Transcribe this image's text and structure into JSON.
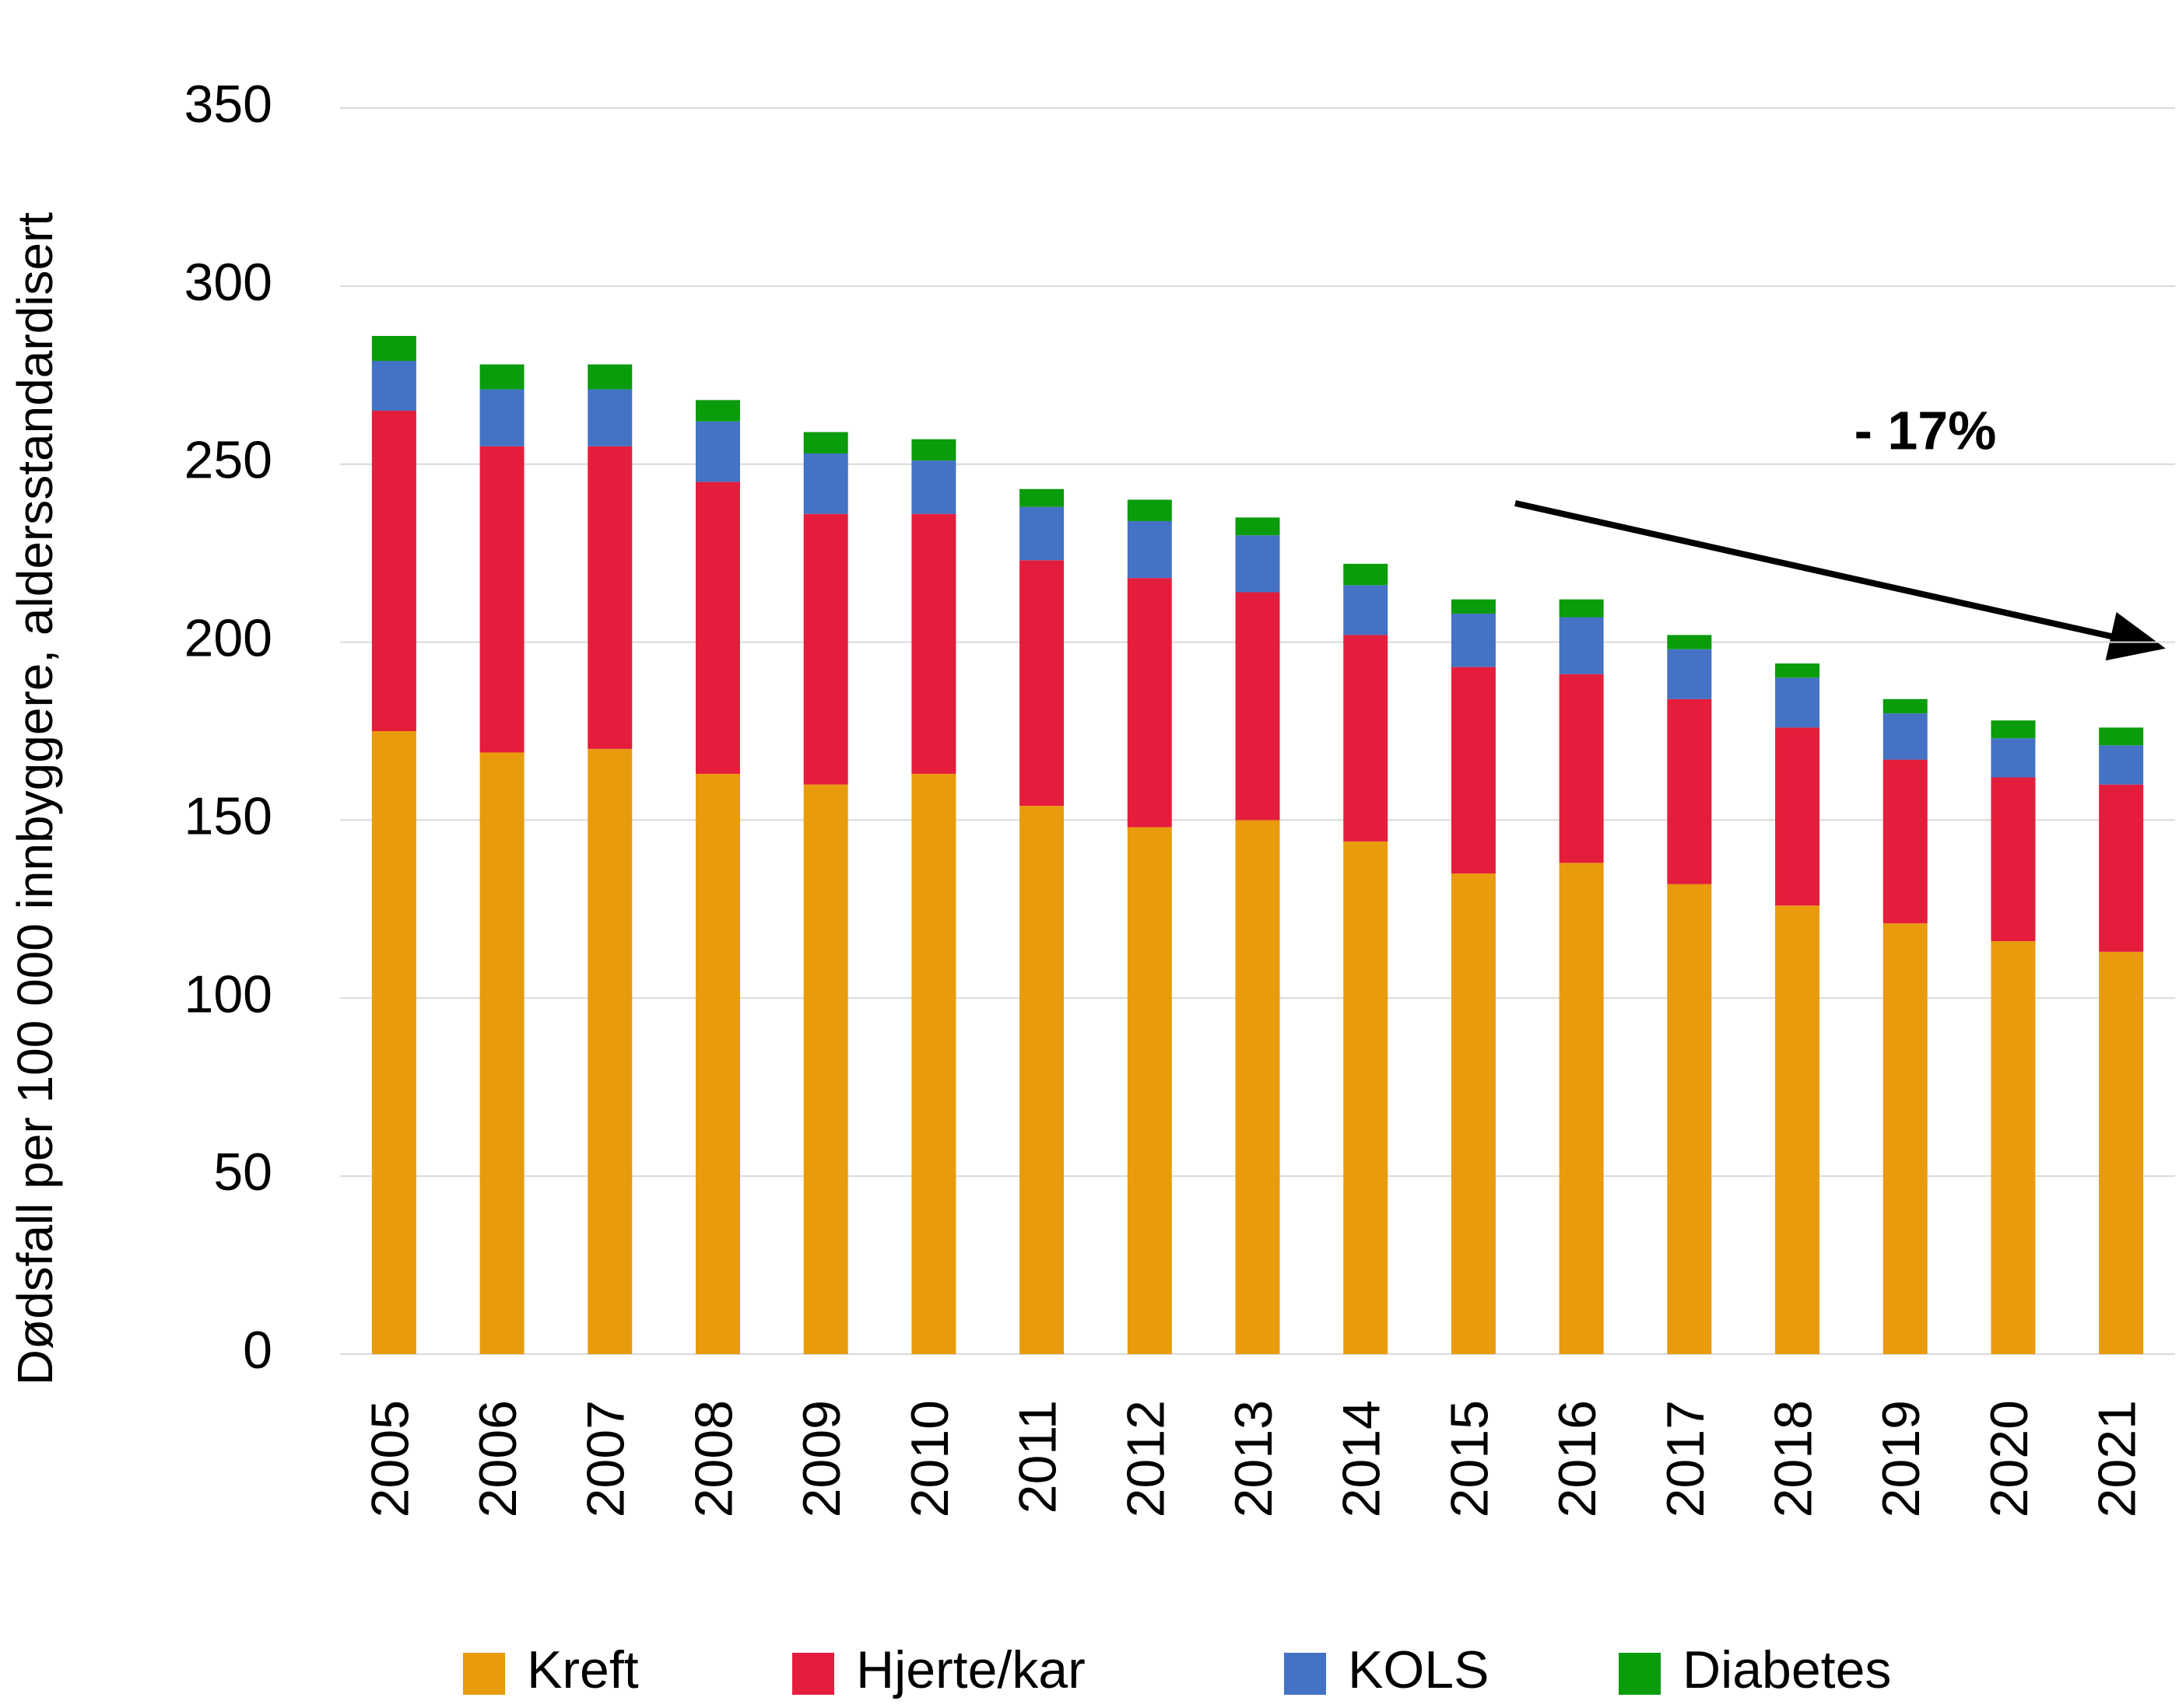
{
  "chart_data": {
    "type": "stacked_bar",
    "y_label": "Dødsfall per 100 000 innbyggere, aldersstandardisert",
    "annotation": "- 17%",
    "categories": [
      "2005",
      "2006",
      "2007",
      "2008",
      "2009",
      "2010",
      "2011",
      "2012",
      "2013",
      "2014",
      "2015",
      "2016",
      "2017",
      "2018",
      "2019",
      "2020",
      "2021"
    ],
    "series": [
      {
        "name": "Kreft",
        "color": "#e89b0c",
        "values": [
          175,
          169,
          170,
          163,
          160,
          163,
          154,
          148,
          150,
          144,
          135,
          138,
          132,
          126,
          121,
          116,
          113
        ]
      },
      {
        "name": "Hjerte/kar",
        "color": "#e51d3c",
        "values": [
          90,
          86,
          85,
          82,
          76,
          73,
          69,
          70,
          64,
          58,
          58,
          53,
          52,
          50,
          46,
          46,
          47
        ]
      },
      {
        "name": "KOLS",
        "color": "#4472c4",
        "values": [
          14,
          16,
          16,
          17,
          17,
          15,
          15,
          16,
          16,
          14,
          15,
          16,
          14,
          14,
          13,
          11,
          11
        ]
      },
      {
        "name": "Diabetes",
        "color": "#0a9c0a",
        "values": [
          7,
          7,
          7,
          6,
          6,
          6,
          5,
          6,
          5,
          6,
          4,
          5,
          4,
          4,
          4,
          5,
          5
        ]
      }
    ],
    "ylim": [
      0,
      350
    ],
    "yticks": [
      0,
      50,
      100,
      150,
      200,
      250,
      300,
      350
    ],
    "grid": true,
    "legend": "bottom"
  }
}
